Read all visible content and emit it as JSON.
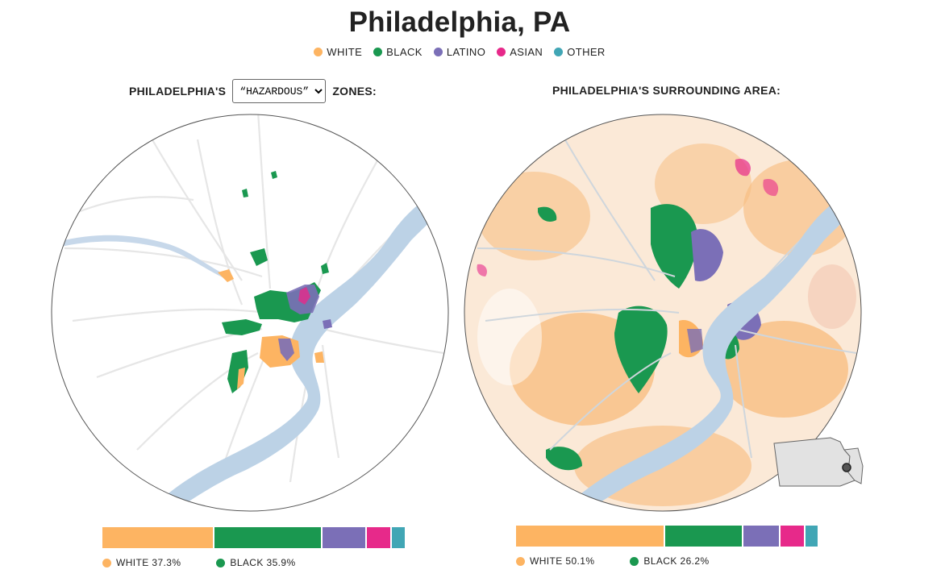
{
  "title": "Philadelphia, PA",
  "legend": [
    {
      "label": "WHITE",
      "color": "#fdb462"
    },
    {
      "label": "BLACK",
      "color": "#1a9850"
    },
    {
      "label": "LATINO",
      "color": "#7b6fb7"
    },
    {
      "label": "ASIAN",
      "color": "#e7298a"
    },
    {
      "label": "OTHER",
      "color": "#41a6b5"
    }
  ],
  "left_map": {
    "heading_prefix": "PHILADELPHIA'S",
    "selector_value": "“HAZARDOUS”",
    "heading_suffix": "ZONES:",
    "shares": {
      "white": 37.3,
      "black": 35.9,
      "latino": 14.5,
      "asian": 8.0,
      "other": 4.3
    },
    "labels": [
      "WHITE 37.3%",
      "BLACK 35.9%"
    ]
  },
  "right_map": {
    "heading": "PHILADELPHIA'S SURROUNDING AREA:",
    "shares": {
      "white": 50.1,
      "black": 26.2,
      "latino": 12.0,
      "asian": 8.0,
      "other": 4.0
    },
    "labels": [
      "WHITE 50.1%",
      "BLACK 26.2%"
    ]
  },
  "colors": {
    "white": "#fdb462",
    "black": "#1a9850",
    "latino": "#7b6fb7",
    "asian": "#e7298a",
    "other": "#41a6b5",
    "water": "#bcd2e6",
    "road": "#e6e6e6"
  }
}
